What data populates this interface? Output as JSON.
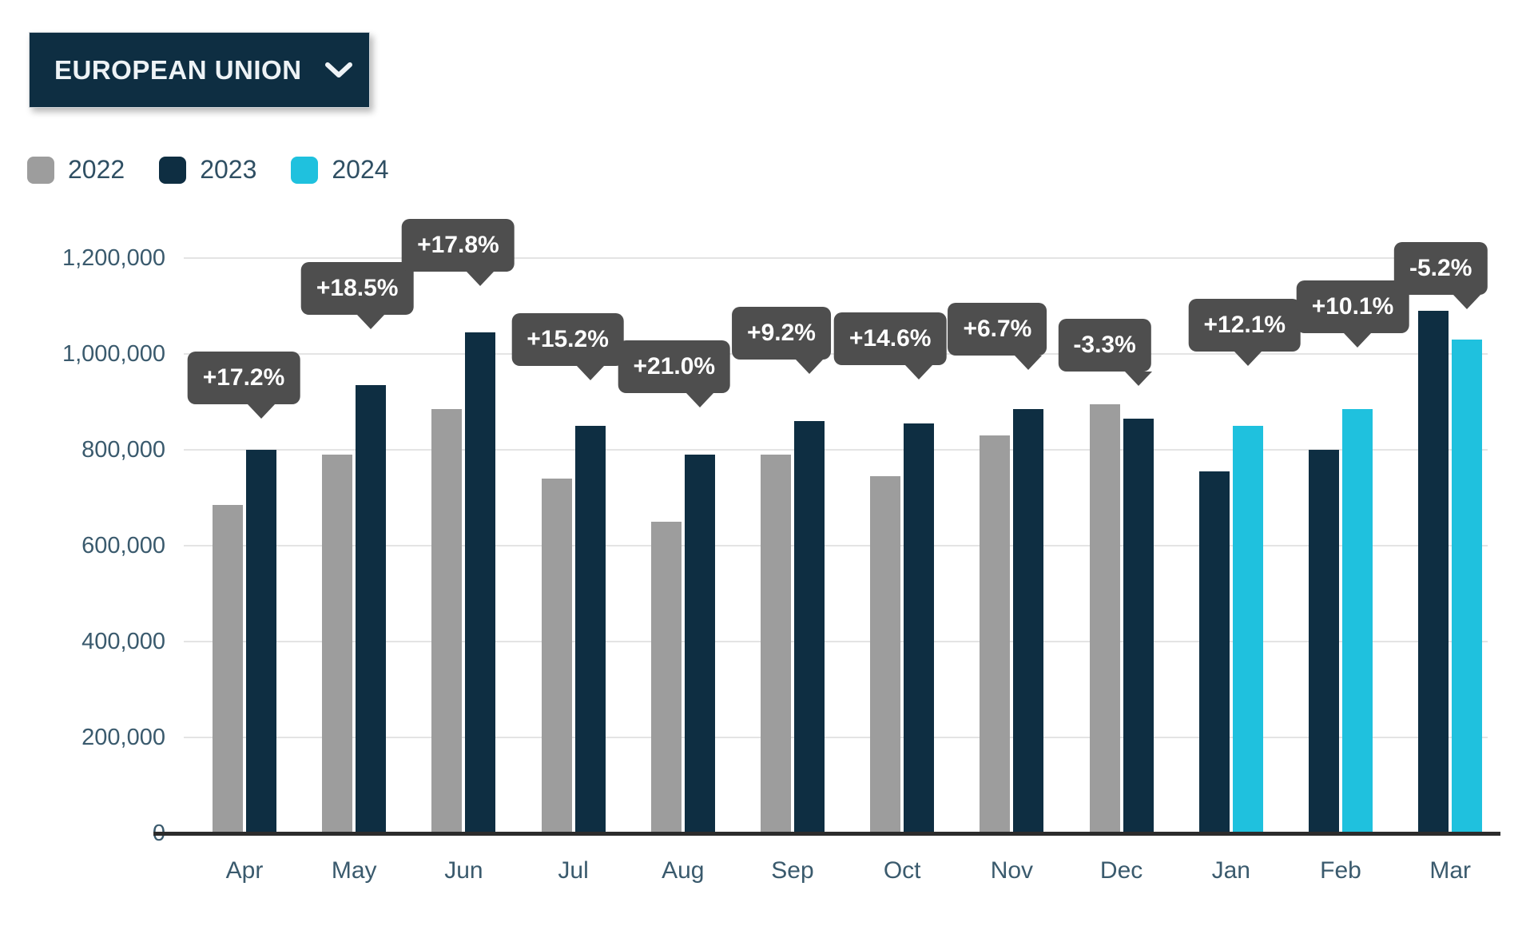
{
  "region_selector": {
    "label": "EUROPEAN UNION",
    "chevron_icon": "chevron-down-icon"
  },
  "legend": [
    {
      "year": "2022",
      "color": "#9d9d9d"
    },
    {
      "year": "2023",
      "color": "#0e2e42"
    },
    {
      "year": "2024",
      "color": "#1fc1de"
    }
  ],
  "chart_data": {
    "type": "bar",
    "title": "",
    "categories": [
      "Apr",
      "May",
      "Jun",
      "Jul",
      "Aug",
      "Sep",
      "Oct",
      "Nov",
      "Dec",
      "Jan",
      "Feb",
      "Mar"
    ],
    "series": [
      {
        "name": "2022",
        "color": "#9d9d9d",
        "values": [
          685000,
          790000,
          885000,
          740000,
          650000,
          790000,
          745000,
          830000,
          895000,
          null,
          null,
          null
        ]
      },
      {
        "name": "2023",
        "color": "#0e2e42",
        "values": [
          800000,
          935000,
          1045000,
          850000,
          790000,
          860000,
          855000,
          885000,
          865000,
          755000,
          800000,
          1090000
        ]
      },
      {
        "name": "2024",
        "color": "#1fc1de",
        "values": [
          null,
          null,
          null,
          null,
          null,
          null,
          null,
          null,
          null,
          850000,
          885000,
          1030000
        ]
      }
    ],
    "change_labels": [
      "+17.2%",
      "+18.5%",
      "+17.8%",
      "+15.2%",
      "+21.0%",
      "+9.2%",
      "+14.6%",
      "+6.7%",
      "-3.3%",
      "+12.1%",
      "+10.1%",
      "-5.2%"
    ],
    "ylabel": "",
    "ylim": [
      0,
      1200000
    ],
    "yticks": [
      "1,200,000",
      "1,000,000",
      "800,000",
      "600,000",
      "400,000",
      "200,000",
      "0"
    ],
    "grid": true,
    "legend_position": "top-left",
    "annotation_style": {
      "background": "#4e4e4e",
      "text_color": "#ffffff"
    }
  }
}
